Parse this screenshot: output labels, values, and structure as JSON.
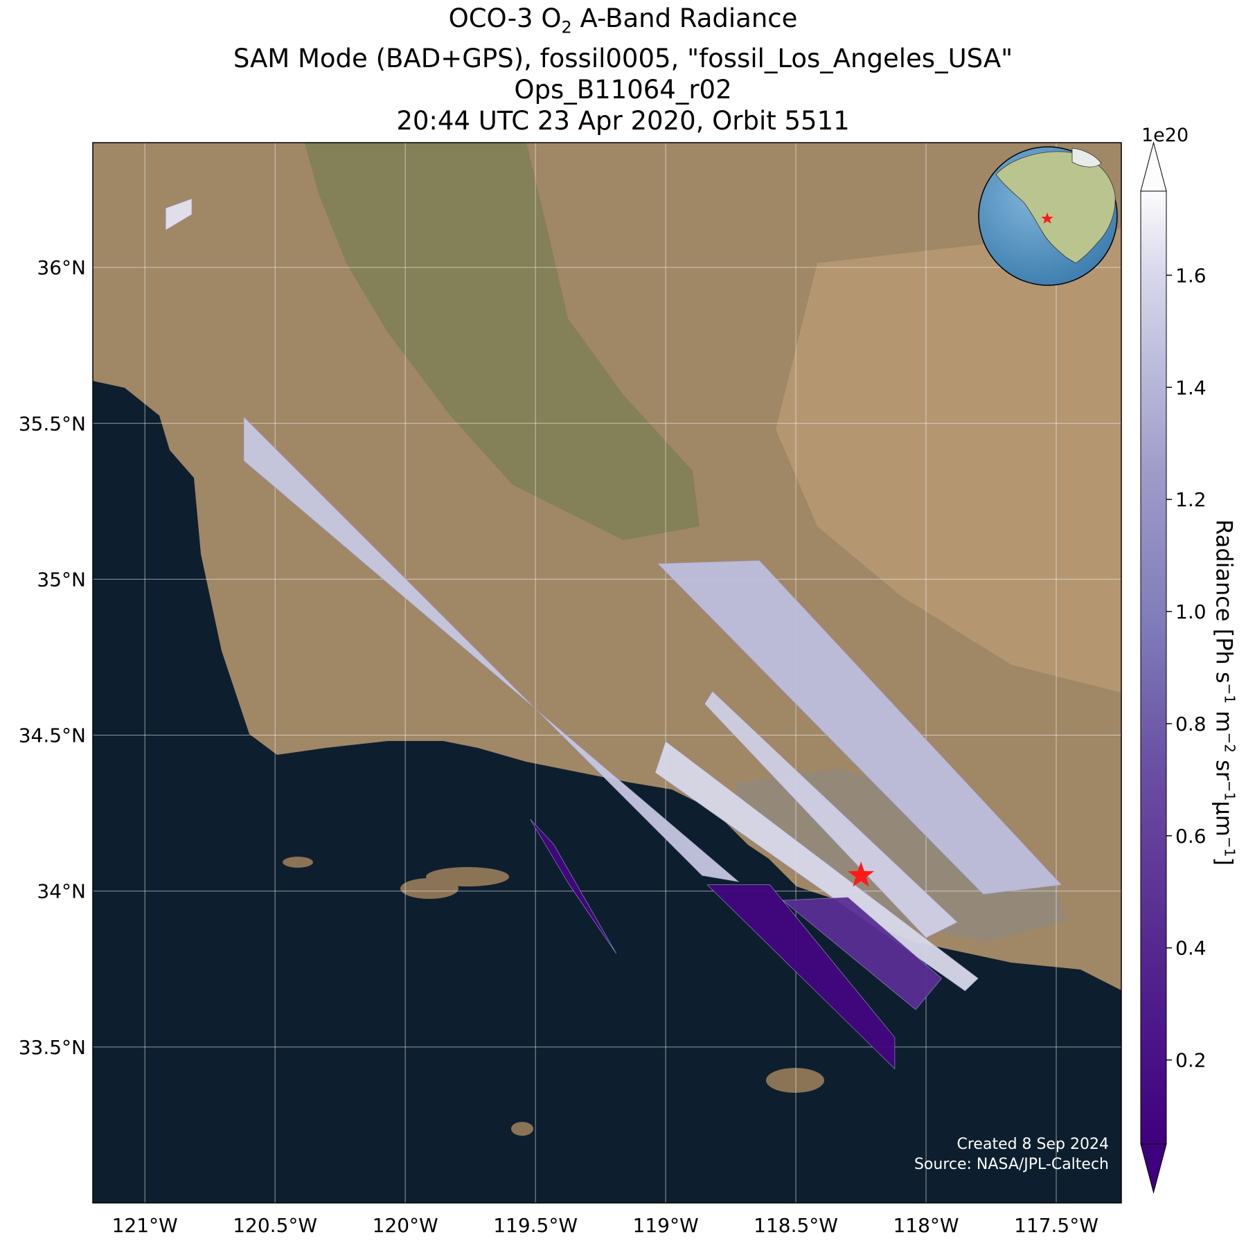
{
  "title": {
    "line1_pre": "OCO-3 O",
    "line1_sub": "2",
    "line1_post": " A-Band Radiance",
    "line2": "SAM Mode (BAD+GPS), fossil0005, \"fossil_Los_Angeles_USA\"",
    "line3": "Ops_B11064_r02",
    "line4": "20:44 UTC 23 Apr 2020, Orbit 5511"
  },
  "map": {
    "extent": {
      "lon_min": -121.2,
      "lon_max": -117.25,
      "lat_min": 33.0,
      "lat_max": 36.4
    },
    "lon_ticks": [
      {
        "value": -121.0,
        "label": "121°W"
      },
      {
        "value": -120.5,
        "label": "120.5°W"
      },
      {
        "value": -120.0,
        "label": "120°W"
      },
      {
        "value": -119.5,
        "label": "119.5°W"
      },
      {
        "value": -119.0,
        "label": "119°W"
      },
      {
        "value": -118.5,
        "label": "118.5°W"
      },
      {
        "value": -118.0,
        "label": "118°W"
      },
      {
        "value": -117.5,
        "label": "117.5°W"
      }
    ],
    "lat_ticks": [
      {
        "value": 36.0,
        "label": "36°N"
      },
      {
        "value": 35.5,
        "label": "35.5°N"
      },
      {
        "value": 35.0,
        "label": "35°N"
      },
      {
        "value": 34.5,
        "label": "34.5°N"
      },
      {
        "value": 34.0,
        "label": "34°N"
      },
      {
        "value": 33.5,
        "label": "33.5°N"
      }
    ],
    "target": {
      "name": "fossil_Los_Angeles_USA",
      "lon": -118.25,
      "lat": 34.05
    },
    "colors": {
      "ocean": "#0d1f2e",
      "land": "#a08766",
      "target_star": "#ff1a1a",
      "inset_ocean": "#4d8fc0"
    },
    "swaths": [
      {
        "id": "swath-1",
        "corners": [
          [
            -120.62,
            35.52
          ],
          [
            -120.62,
            35.38
          ],
          [
            -118.72,
            34.03
          ],
          [
            -118.86,
            34.05
          ]
        ],
        "mean_radiance": 1.5
      },
      {
        "id": "swath-2",
        "corners": [
          [
            -119.0,
            34.48
          ],
          [
            -119.04,
            34.38
          ],
          [
            -117.85,
            33.68
          ],
          [
            -117.8,
            33.72
          ]
        ],
        "mean_radiance": 1.6
      },
      {
        "id": "swath-3",
        "corners": [
          [
            -118.82,
            34.64
          ],
          [
            -118.85,
            34.6
          ],
          [
            -118.0,
            33.85
          ],
          [
            -117.88,
            33.9
          ]
        ],
        "mean_radiance": 1.55
      },
      {
        "id": "swath-4",
        "corners": [
          [
            -119.03,
            35.05
          ],
          [
            -118.64,
            35.06
          ],
          [
            -117.48,
            34.02
          ],
          [
            -117.78,
            33.99
          ]
        ],
        "mean_radiance": 1.45
      },
      {
        "id": "swath-5",
        "corners": [
          [
            -119.52,
            34.23
          ],
          [
            -119.43,
            34.15
          ],
          [
            -119.19,
            33.8
          ],
          [
            -119.37,
            34.02
          ]
        ],
        "mean_radiance": 0.1
      },
      {
        "id": "swath-6",
        "corners": [
          [
            -118.84,
            34.02
          ],
          [
            -118.6,
            34.02
          ],
          [
            -118.12,
            33.53
          ],
          [
            -118.12,
            33.43
          ]
        ],
        "mean_radiance": 0.1
      },
      {
        "id": "swath-7",
        "corners": [
          [
            -118.55,
            33.97
          ],
          [
            -118.3,
            33.98
          ],
          [
            -117.94,
            33.72
          ],
          [
            -118.04,
            33.62
          ]
        ],
        "mean_radiance": 0.45
      },
      {
        "id": "swath-8",
        "corners": [
          [
            -120.92,
            36.19
          ],
          [
            -120.82,
            36.22
          ],
          [
            -120.82,
            36.17
          ],
          [
            -120.92,
            36.12
          ]
        ],
        "mean_radiance": 1.65
      }
    ]
  },
  "colorbar": {
    "label": "Radiance [Ph s",
    "exponent_label": "1e20",
    "range": [
      0.05,
      1.75
    ],
    "extend": "both",
    "cmap": "Purples_r",
    "ticks": [
      {
        "value": 0.2,
        "label": "0.2"
      },
      {
        "value": 0.4,
        "label": "0.4"
      },
      {
        "value": 0.6,
        "label": "0.6"
      },
      {
        "value": 0.8,
        "label": "0.8"
      },
      {
        "value": 1.0,
        "label": "1.0"
      },
      {
        "value": 1.2,
        "label": "1.2"
      },
      {
        "value": 1.4,
        "label": "1.4"
      },
      {
        "value": 1.6,
        "label": "1.6"
      }
    ]
  },
  "credits": {
    "created": "Created 8 Sep 2024",
    "source": "Source: NASA/JPL-Caltech"
  }
}
